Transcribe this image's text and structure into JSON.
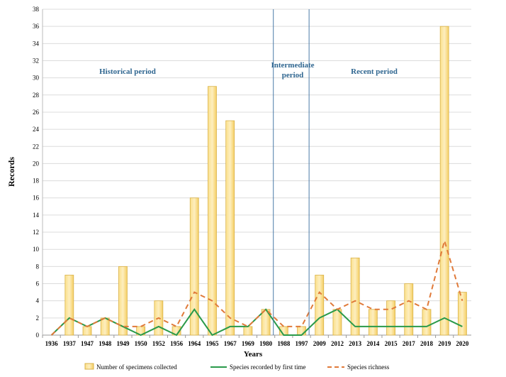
{
  "chart_data": {
    "type": "bar",
    "xlabel": "Years",
    "ylabel": "Records",
    "ylim": [
      0,
      38
    ],
    "yticks": [
      0,
      2,
      4,
      6,
      8,
      10,
      12,
      14,
      16,
      18,
      20,
      22,
      24,
      26,
      28,
      30,
      32,
      34,
      36,
      38
    ],
    "grid": true,
    "legend_position": "bottom",
    "categories": [
      "1936",
      "1937",
      "1947",
      "1948",
      "1949",
      "1950",
      "1952",
      "1956",
      "1964",
      "1965",
      "1967",
      "1969",
      "1980",
      "1988",
      "1997",
      "2009",
      "2012",
      "2013",
      "2014",
      "2015",
      "2017",
      "2018",
      "2019",
      "2020"
    ],
    "series": [
      {
        "name": "Number of specimens collected",
        "type": "bar",
        "color": "#f9d77a",
        "values": [
          0,
          7,
          1,
          2,
          8,
          1,
          4,
          1,
          16,
          29,
          25,
          1,
          3,
          1,
          1,
          7,
          3,
          9,
          3,
          4,
          6,
          3,
          36,
          5
        ]
      },
      {
        "name": "Species recorded by first time",
        "type": "line",
        "color": "#2a9a4a",
        "values": [
          0,
          2,
          1,
          2,
          1,
          0,
          1,
          0,
          3,
          0,
          1,
          1,
          3,
          0,
          0,
          2,
          3,
          1,
          1,
          1,
          1,
          1,
          2,
          1
        ]
      },
      {
        "name": "Species richness",
        "type": "line-dashed",
        "color": "#e07a3a",
        "values": [
          0,
          2,
          1,
          2,
          1,
          1,
          2,
          1,
          5,
          4,
          2,
          1,
          3,
          1,
          1,
          5,
          3,
          4,
          3,
          3,
          4,
          3,
          11,
          4
        ]
      }
    ],
    "period_dividers_after": [
      "1980",
      "1997"
    ],
    "annotations": [
      "Historical period",
      "Intermediate period",
      "Recent period"
    ]
  }
}
